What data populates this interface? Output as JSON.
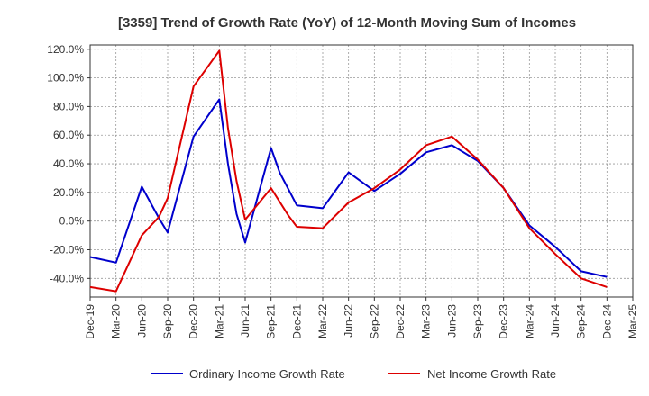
{
  "chart_data": {
    "type": "line",
    "title": "[3359]  Trend of Growth Rate (YoY) of 12-Month Moving Sum of Incomes",
    "xlabel": "",
    "ylabel": "",
    "ylim": [
      -53,
      123
    ],
    "y_ticks": [
      -40,
      -20,
      0,
      20,
      40,
      60,
      80,
      100,
      120
    ],
    "y_tick_labels": [
      "-40.0%",
      "-20.0%",
      "0.0%",
      "20.0%",
      "40.0%",
      "60.0%",
      "80.0%",
      "100.0%",
      "120.0%"
    ],
    "x_ticks": [
      "Dec-19",
      "Mar-20",
      "Jun-20",
      "Sep-20",
      "Dec-20",
      "Mar-21",
      "Jun-21",
      "Sep-21",
      "Dec-21",
      "Mar-22",
      "Jun-22",
      "Sep-22",
      "Dec-22",
      "Mar-23",
      "Jun-23",
      "Sep-23",
      "Dec-23",
      "Mar-24",
      "Jun-24",
      "Sep-24",
      "Dec-24",
      "Mar-25"
    ],
    "grid": true,
    "legend_position": "bottom",
    "series": [
      {
        "name": "Ordinary Income Growth Rate",
        "color": "#0000cc",
        "points": [
          [
            "Dec-19",
            -25
          ],
          [
            "Mar-20",
            -29
          ],
          [
            "Jun-20",
            24
          ],
          [
            "Aug-20",
            2
          ],
          [
            "Sep-20",
            -8
          ],
          [
            "Dec-20",
            59
          ],
          [
            "Mar-21",
            85
          ],
          [
            "Apr-21",
            40
          ],
          [
            "May-21",
            5
          ],
          [
            "Jun-21",
            -15
          ],
          [
            "Sep-21",
            51
          ],
          [
            "Oct-21",
            34
          ],
          [
            "Dec-21",
            11
          ],
          [
            "Mar-22",
            9
          ],
          [
            "Jun-22",
            34
          ],
          [
            "Sep-22",
            21
          ],
          [
            "Dec-22",
            33
          ],
          [
            "Mar-23",
            48
          ],
          [
            "Jun-23",
            53
          ],
          [
            "Sep-23",
            42
          ],
          [
            "Dec-23",
            23
          ],
          [
            "Mar-24",
            -3
          ],
          [
            "Jun-24",
            -18
          ],
          [
            "Sep-24",
            -35
          ],
          [
            "Dec-24",
            -39
          ]
        ]
      },
      {
        "name": "Net Income Growth Rate",
        "color": "#dd0000",
        "points": [
          [
            "Dec-19",
            -46
          ],
          [
            "Mar-20",
            -49
          ],
          [
            "Jun-20",
            -10
          ],
          [
            "Aug-20",
            3
          ],
          [
            "Sep-20",
            16
          ],
          [
            "Dec-20",
            94
          ],
          [
            "Mar-21",
            119
          ],
          [
            "Apr-21",
            65
          ],
          [
            "May-21",
            28
          ],
          [
            "Jun-21",
            1
          ],
          [
            "Sep-21",
            23
          ],
          [
            "Nov-21",
            4
          ],
          [
            "Dec-21",
            -4
          ],
          [
            "Mar-22",
            -5
          ],
          [
            "Jun-22",
            13
          ],
          [
            "Sep-22",
            23
          ],
          [
            "Dec-22",
            36
          ],
          [
            "Mar-23",
            53
          ],
          [
            "Jun-23",
            59
          ],
          [
            "Sep-23",
            43
          ],
          [
            "Dec-23",
            23
          ],
          [
            "Mar-24",
            -5
          ],
          [
            "Jun-24",
            -23
          ],
          [
            "Sep-24",
            -40
          ],
          [
            "Dec-24",
            -46
          ]
        ]
      }
    ]
  }
}
